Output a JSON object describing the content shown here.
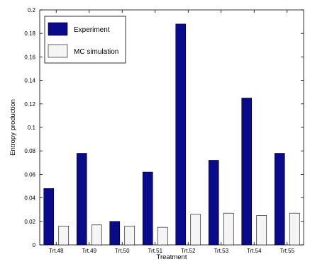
{
  "chart_data": {
    "type": "bar",
    "title": "",
    "xlabel": "Treatment",
    "ylabel": "Entropy production",
    "ylim": [
      0,
      0.2
    ],
    "yticks": [
      0,
      0.02,
      0.04,
      0.06,
      0.08,
      0.1,
      0.12,
      0.14,
      0.16,
      0.18,
      0.2
    ],
    "ytick_labels": [
      "0",
      "0.02",
      "0.04",
      "0.06",
      "0.08",
      "0.1",
      "0.12",
      "0.14",
      "0.16",
      "0.18",
      "0.2"
    ],
    "categories": [
      "Trt.48",
      "Trt.49",
      "Trt.50",
      "Trt.51",
      "Trt.52",
      "Trt.53",
      "Trt.54",
      "Trt.55"
    ],
    "series": [
      {
        "name": "Experiment",
        "color": "#0a0a8c",
        "values": [
          0.048,
          0.078,
          0.02,
          0.062,
          0.188,
          0.072,
          0.125,
          0.078
        ]
      },
      {
        "name": "MC simulation",
        "color": "#f5f5f5",
        "values": [
          0.016,
          0.017,
          0.016,
          0.015,
          0.026,
          0.027,
          0.025,
          0.027
        ]
      }
    ],
    "legend": "top-left",
    "grid": false
  }
}
